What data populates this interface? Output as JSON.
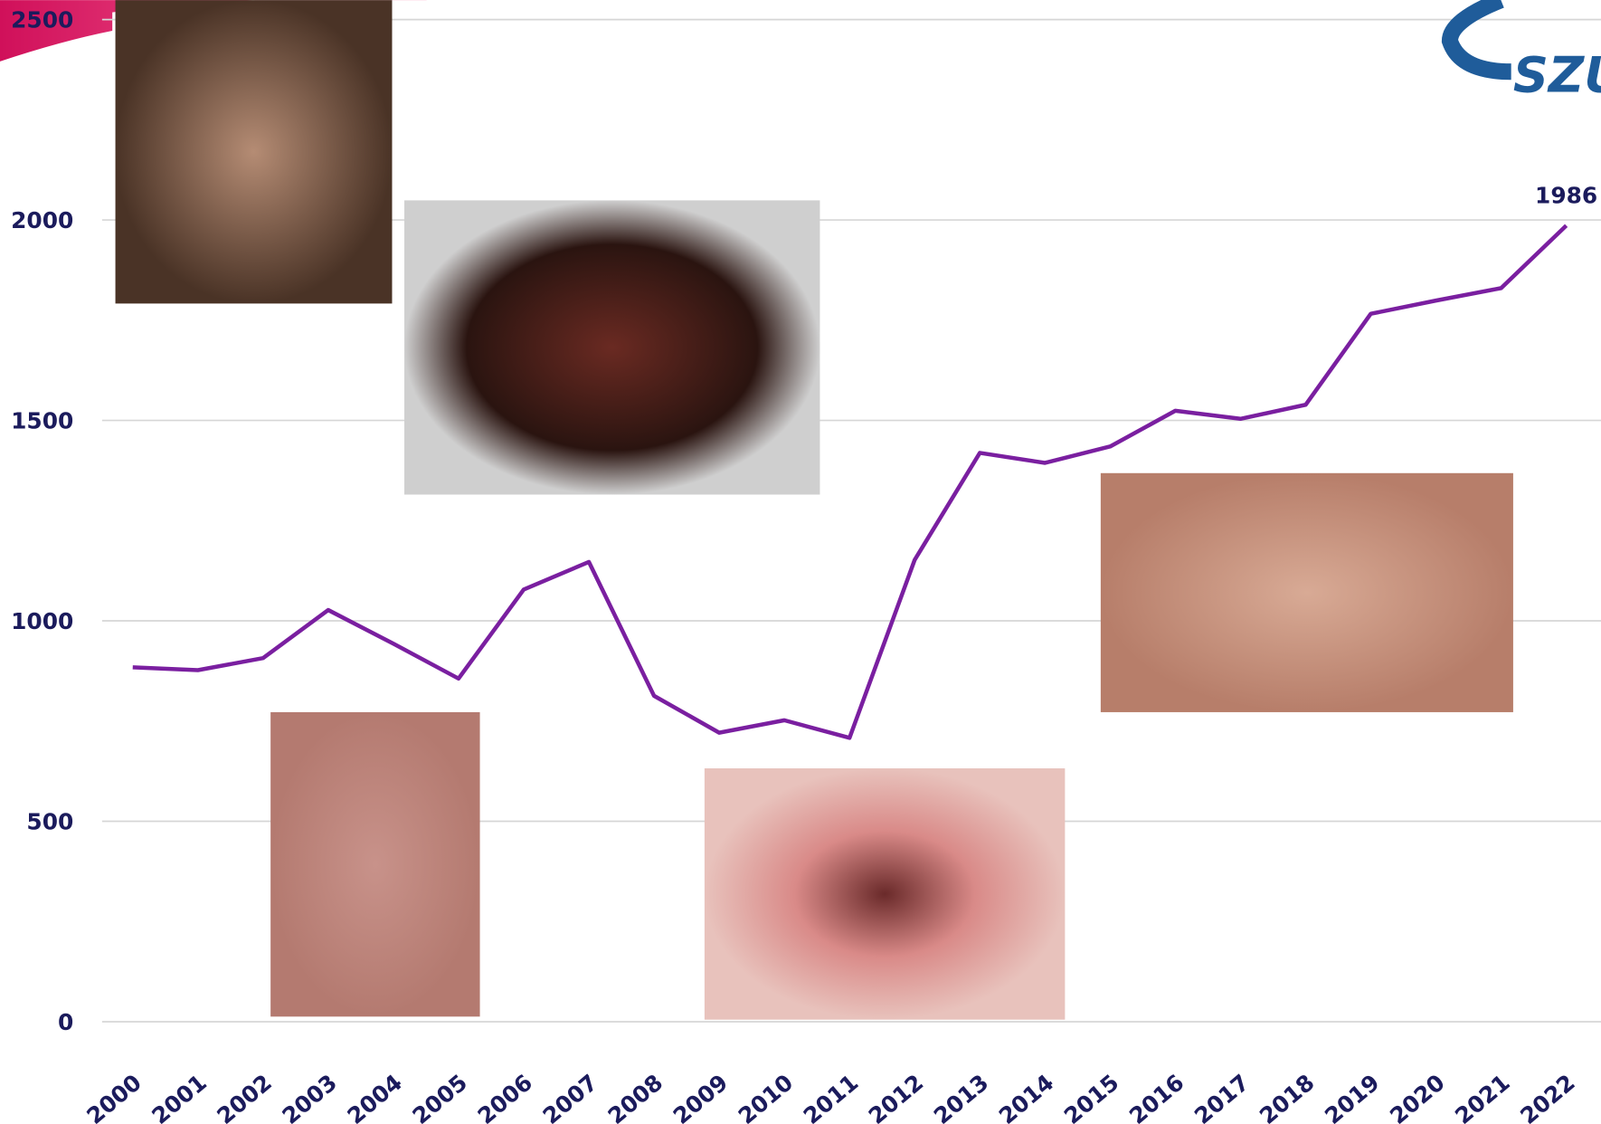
{
  "chart_data": {
    "type": "line",
    "categories": [
      "2000",
      "2001",
      "2002",
      "2003",
      "2004",
      "2005",
      "2006",
      "2007",
      "2008",
      "2009",
      "2010",
      "2011",
      "2012",
      "2013",
      "2014",
      "2015",
      "2016",
      "2017",
      "2018",
      "2019",
      "2020",
      "2021",
      "2022"
    ],
    "series": [
      {
        "color": "#7a1fa0",
        "values": [
          884,
          877,
          907,
          1027,
          943,
          856,
          1078,
          1147,
          813,
          721,
          752,
          708,
          1152,
          1419,
          1394,
          1435,
          1524,
          1504,
          1539,
          1766,
          1799,
          1830,
          1986
        ],
        "value_labels": [
          null,
          null,
          null,
          null,
          null,
          null,
          null,
          null,
          null,
          null,
          null,
          null,
          null,
          null,
          null,
          null,
          null,
          null,
          null,
          null,
          null,
          null,
          "1986"
        ]
      }
    ],
    "ylim": [
      0,
      2500
    ],
    "yticks": [
      0,
      500,
      1000,
      1500,
      2000,
      2500
    ],
    "grid": true
  },
  "logo": {
    "text": "SZU"
  }
}
